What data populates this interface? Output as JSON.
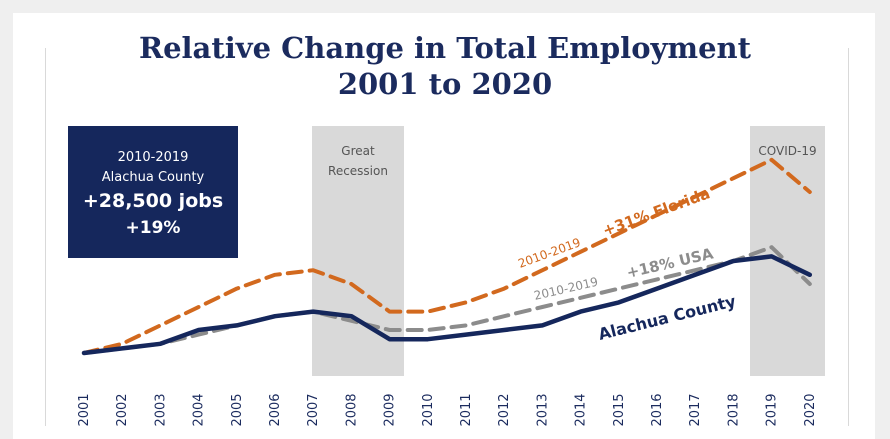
{
  "chart_data": {
    "type": "line",
    "title": "Relative Change in Total Employment",
    "subtitle": "2001 to 2020",
    "x": [
      "2001",
      "2002",
      "2003",
      "2004",
      "2005",
      "2006",
      "2007",
      "2008",
      "2009",
      "2010",
      "2011",
      "2012",
      "2013",
      "2014",
      "2015",
      "2016",
      "2017",
      "2018",
      "2019",
      "2020"
    ],
    "series": [
      {
        "name": "Florida",
        "color": "#d2691e",
        "style": "dashed",
        "values": [
          0,
          2,
          6,
          10,
          14,
          17,
          18,
          15,
          9,
          9,
          11,
          14,
          18,
          22,
          26,
          30,
          34,
          38,
          42,
          35
        ]
      },
      {
        "name": "USA",
        "color": "#8c8c8c",
        "style": "dashed",
        "values": [
          0,
          1,
          2,
          4,
          6,
          8,
          9,
          7,
          5,
          5,
          6,
          8,
          10,
          12,
          14,
          16,
          18,
          20,
          23,
          15
        ]
      },
      {
        "name": "Alachua County",
        "color": "#15275c",
        "style": "solid",
        "values": [
          0,
          1,
          2,
          5,
          6,
          8,
          9,
          8,
          3,
          3,
          4,
          5,
          6,
          9,
          11,
          14,
          17,
          20,
          21,
          17
        ]
      }
    ],
    "annotations": {
      "florida": [
        "2010-2019",
        "+31% Florida"
      ],
      "usa": [
        "2010-2019",
        "+18% USA"
      ],
      "county": "Alachua County"
    },
    "shaded_regions": [
      {
        "label": [
          "Great",
          "Recession"
        ],
        "from": "2007",
        "to": "2009"
      },
      {
        "label": [
          "COVID-19"
        ],
        "from": "2019",
        "to": "2020"
      }
    ],
    "callout": {
      "line1": "2010-2019",
      "line2": "Alachua County",
      "line3": "+28,500 jobs",
      "line4": "+19%"
    },
    "grid": false,
    "legend": "none"
  }
}
